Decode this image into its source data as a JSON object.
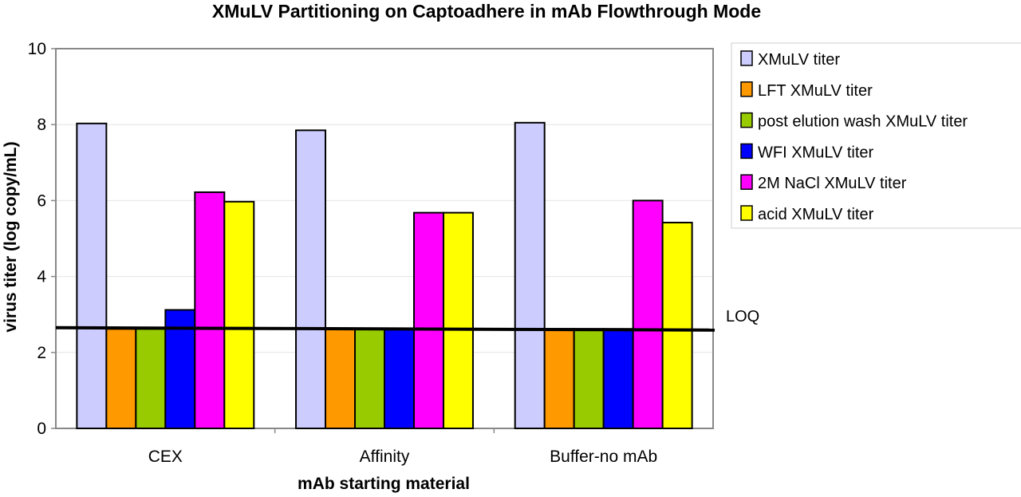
{
  "chart_data": {
    "type": "bar",
    "title": "XMuLV Partitioning on Captoadhere in mAb Flowthrough Mode",
    "xlabel": "mAb starting material",
    "ylabel": "virus titer (log copy/mL)",
    "ylim": [
      0,
      10
    ],
    "yticks": [
      0,
      2,
      4,
      6,
      8,
      10
    ],
    "grid": true,
    "legend_position": "right",
    "categories": [
      "CEX",
      "Affinity",
      "Buffer-no mAb"
    ],
    "series": [
      {
        "name": "XMuLV titer",
        "color": "#ccccff",
        "values": [
          8.03,
          7.85,
          8.05
        ]
      },
      {
        "name": "LFT XMuLV titer",
        "color": "#ff9900",
        "values": [
          2.62,
          2.62,
          2.62
        ]
      },
      {
        "name": "post elution wash XMuLV titer",
        "color": "#99cc00",
        "values": [
          2.62,
          2.62,
          2.62
        ]
      },
      {
        "name": "WFI XMuLV titer",
        "color": "#0000ff",
        "values": [
          3.12,
          2.62,
          2.62
        ]
      },
      {
        "name": "2M NaCl XMuLV titer",
        "color": "#ff00ff",
        "values": [
          6.22,
          5.68,
          6.0
        ]
      },
      {
        "name": "acid XMuLV titer",
        "color": "#ffff00",
        "values": [
          5.97,
          5.68,
          5.42
        ]
      }
    ],
    "reference_line": {
      "label": "LOQ",
      "value": 2.62
    }
  }
}
